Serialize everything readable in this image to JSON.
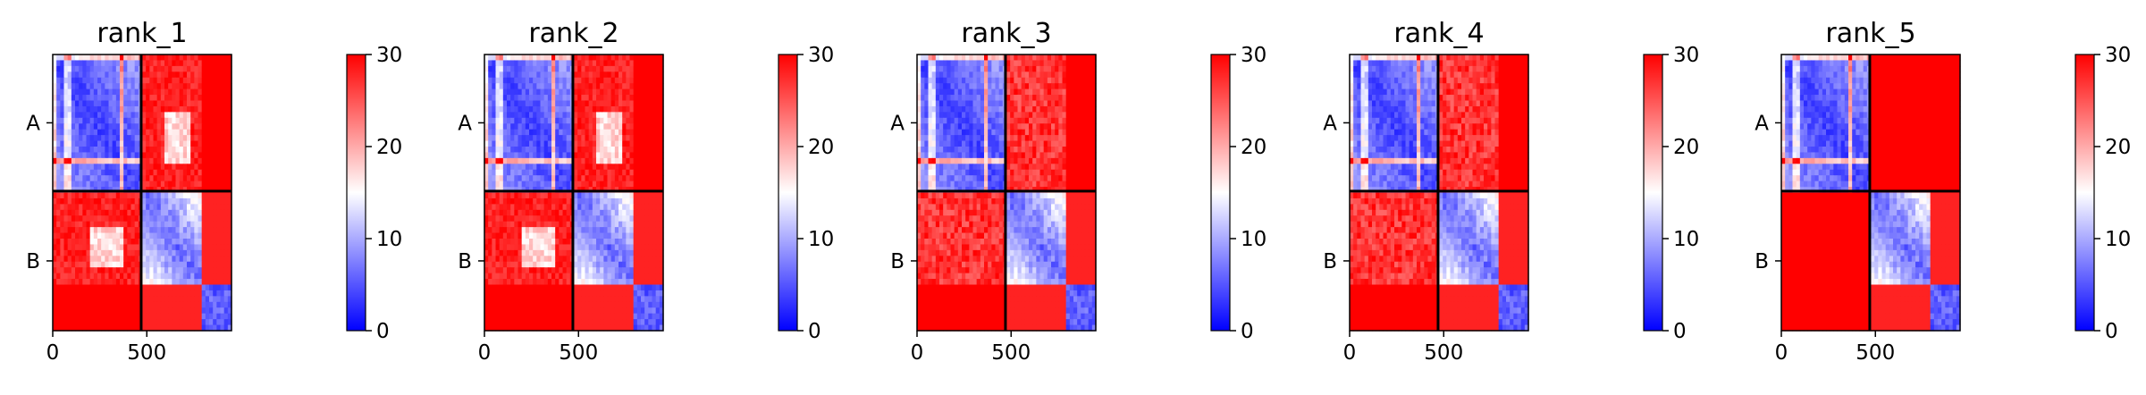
{
  "chart_data": {
    "type": "heatmap",
    "colormap": {
      "name": "bwr",
      "low": "#0000ff",
      "mid": "#ffffff",
      "high": "#ff0000",
      "vmin": 0,
      "vmax": 30
    },
    "colorbar_ticks": [
      "0",
      "10",
      "20",
      "30"
    ],
    "x_ticks": [
      "0",
      "500"
    ],
    "row_labels": [
      "A",
      "B"
    ],
    "chain_lengths": {
      "A": 470,
      "B": 480
    },
    "panels": [
      {
        "title": "rank_1",
        "cross_chain": "partial"
      },
      {
        "title": "rank_2",
        "cross_chain": "partial"
      },
      {
        "title": "rank_3",
        "cross_chain": "high"
      },
      {
        "title": "rank_4",
        "cross_chain": "high"
      },
      {
        "title": "rank_5",
        "cross_chain": "max"
      }
    ]
  }
}
